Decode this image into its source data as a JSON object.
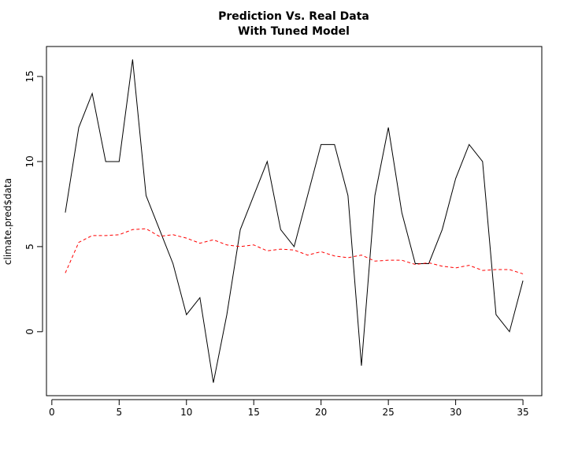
{
  "chart_data": {
    "type": "line",
    "title": [
      "Prediction Vs. Real Data",
      "With Tuned Model"
    ],
    "xlabel": "",
    "ylabel": "climate.pred$data",
    "xlim": [
      -0.4,
      36.4
    ],
    "ylim": [
      -3.76,
      16.76
    ],
    "x_ticks": [
      0,
      5,
      10,
      15,
      20,
      25,
      30,
      35
    ],
    "y_ticks": [
      0,
      5,
      10,
      15
    ],
    "grid": false,
    "legend": "none",
    "series": [
      {
        "color": "#000000",
        "dash": "solid",
        "x": [
          1,
          2,
          3,
          4,
          5,
          6,
          7,
          8,
          9,
          10,
          11,
          12,
          13,
          14,
          15,
          16,
          17,
          18,
          19,
          20,
          21,
          22,
          23,
          24,
          25,
          26,
          27,
          28,
          29,
          30,
          31,
          32,
          33,
          34,
          35
        ],
        "values": [
          7,
          12,
          14,
          10,
          10,
          16,
          8,
          6,
          4,
          1,
          2,
          -3,
          1,
          6,
          8,
          10,
          6,
          5,
          8,
          11,
          11,
          8,
          -2,
          8,
          12,
          7,
          4,
          4,
          6,
          9,
          11,
          10,
          1,
          0,
          3
        ]
      },
      {
        "color": "#ff0000",
        "dash": "dashed",
        "x": [
          1,
          2,
          3,
          4,
          5,
          6,
          7,
          8,
          9,
          10,
          11,
          12,
          13,
          14,
          15,
          16,
          17,
          18,
          19,
          20,
          21,
          22,
          23,
          24,
          25,
          26,
          27,
          28,
          29,
          30,
          31,
          32,
          33,
          34,
          35
        ],
        "values": [
          3.45,
          5.25,
          5.65,
          5.65,
          5.7,
          6.0,
          6.05,
          5.6,
          5.7,
          5.5,
          5.2,
          5.4,
          5.1,
          5.0,
          5.1,
          4.75,
          4.85,
          4.8,
          4.5,
          4.7,
          4.45,
          4.35,
          4.5,
          4.15,
          4.2,
          4.2,
          3.95,
          4.05,
          3.85,
          3.75,
          3.9,
          3.6,
          3.65,
          3.65,
          3.4
        ]
      }
    ]
  }
}
